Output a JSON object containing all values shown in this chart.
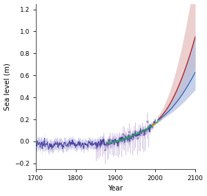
{
  "xlabel": "Year",
  "ylabel": "Sea level (m)",
  "xlim": [
    1700,
    2100
  ],
  "ylim": [
    -0.25,
    1.25
  ],
  "yticks": [
    -0.2,
    0.0,
    0.2,
    0.4,
    0.6,
    0.8,
    1.0,
    1.2
  ],
  "xticks": [
    1700,
    1800,
    1900,
    2000,
    2100
  ],
  "tide_gauge_color": "#4040a0",
  "tide_gauge_uncertainty_color": "#9988cc",
  "satellite_color": "#ff8800",
  "proxy_color": "#9977bb",
  "rcp26_line_color": "#3366bb",
  "rcp85_line_color": "#bb2222",
  "rcp26_fill_color": "#aabbdd",
  "rcp85_fill_color": "#ddaaaa",
  "green_line_color": "#22aa55",
  "cyan_line_color": "#00cccc",
  "background_color": "#ffffff"
}
